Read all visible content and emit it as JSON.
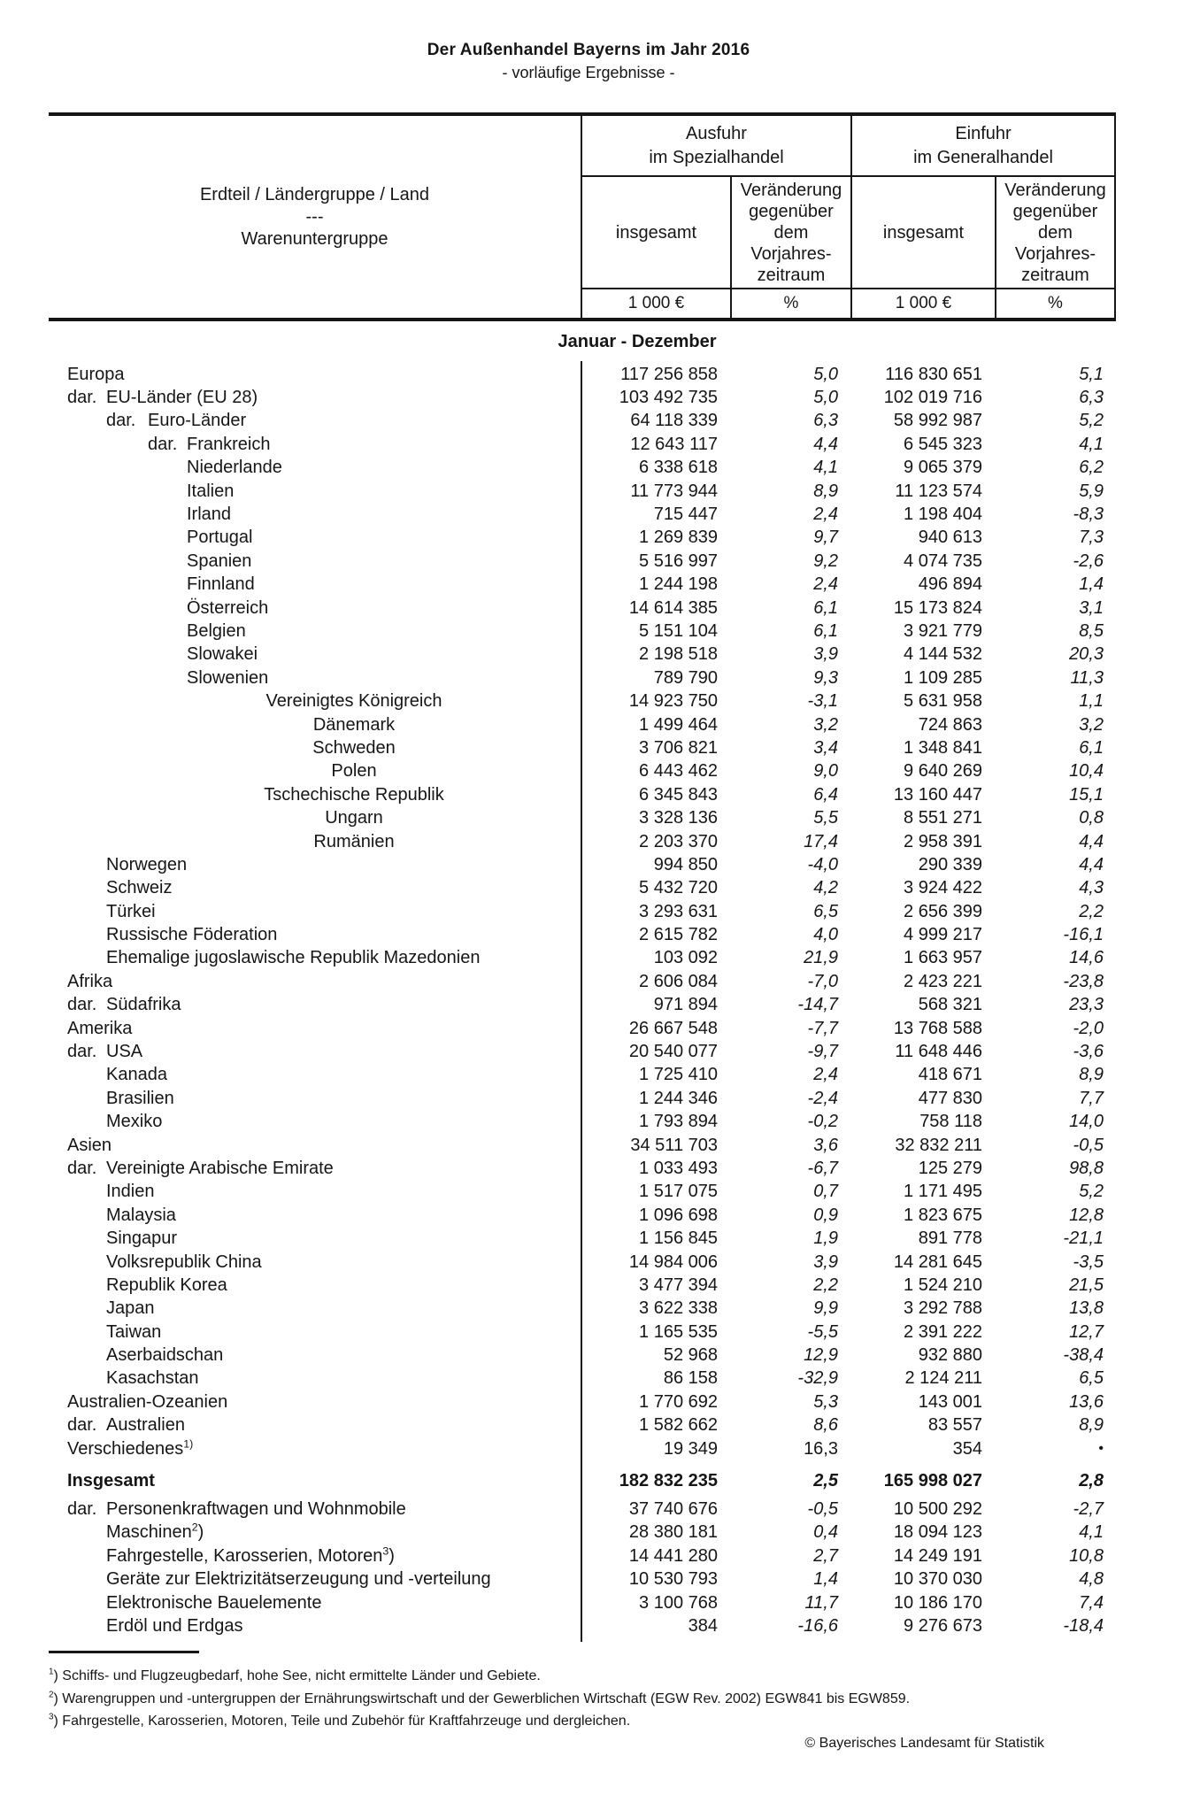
{
  "title": "Der Außenhandel Bayerns im Jahr 2016",
  "subtitle": "- vorläufige Ergebnisse -",
  "header": {
    "label_column": "Erdteil / Ländergruppe / Land\n---\nWarenuntergruppe",
    "groups": [
      "Ausfuhr\nim Spezialhandel",
      "Einfuhr\nim Generalhandel"
    ],
    "sub_total": "insgesamt",
    "sub_change": "Veränderung\ngegenüber\ndem\nVorjahres-\nzeitraum",
    "unit_value": "1 000 €",
    "unit_pct": "%"
  },
  "period": "Januar - Dezember",
  "no_value_symbol": "•",
  "colors": {
    "text": "#161616",
    "background": "#ffffff"
  },
  "rows": [
    {
      "l": "Europa",
      "ind": 0,
      "v1": "117 256 858",
      "p1": "5,0",
      "v2": "116 830 651",
      "p2": "5,1"
    },
    {
      "p": "dar.",
      "l": "EU-Länder (EU 28)",
      "ind": 0,
      "v1": "103 492 735",
      "p1": "5,0",
      "v2": "102 019 716",
      "p2": "6,3"
    },
    {
      "p": "dar.",
      "l": "Euro-Länder",
      "ind": 1,
      "v1": "64 118 339",
      "p1": "6,3",
      "v2": "58 992 987",
      "p2": "5,2"
    },
    {
      "p": "dar.",
      "l": "Frankreich",
      "ind": 2,
      "v1": "12 643 117",
      "p1": "4,4",
      "v2": "6 545 323",
      "p2": "4,1"
    },
    {
      "l": "Niederlande",
      "ind": 3,
      "v1": "6 338 618",
      "p1": "4,1",
      "v2": "9 065 379",
      "p2": "6,2"
    },
    {
      "l": "Italien",
      "ind": 3,
      "v1": "11 773 944",
      "p1": "8,9",
      "v2": "11 123 574",
      "p2": "5,9"
    },
    {
      "l": "Irland",
      "ind": 3,
      "v1": "715 447",
      "p1": "2,4",
      "v2": "1 198 404",
      "p2": "-8,3"
    },
    {
      "l": "Portugal",
      "ind": 3,
      "v1": "1 269 839",
      "p1": "9,7",
      "v2": "940 613",
      "p2": "7,3"
    },
    {
      "l": "Spanien",
      "ind": 3,
      "v1": "5 516 997",
      "p1": "9,2",
      "v2": "4 074 735",
      "p2": "-2,6"
    },
    {
      "l": "Finnland",
      "ind": 3,
      "v1": "1 244 198",
      "p1": "2,4",
      "v2": "496 894",
      "p2": "1,4"
    },
    {
      "l": "Österreich",
      "ind": 3,
      "v1": "14 614 385",
      "p1": "6,1",
      "v2": "15 173 824",
      "p2": "3,1"
    },
    {
      "l": "Belgien",
      "ind": 3,
      "v1": "5 151 104",
      "p1": "6,1",
      "v2": "3 921 779",
      "p2": "8,5"
    },
    {
      "l": "Slowakei",
      "ind": 3,
      "v1": "2 198 518",
      "p1": "3,9",
      "v2": "4 144 532",
      "p2": "20,3"
    },
    {
      "l": "Slowenien",
      "ind": 3,
      "v1": "789 790",
      "p1": "9,3",
      "v2": "1 109 285",
      "p2": "11,3"
    },
    {
      "l": "Vereinigtes Königreich",
      "ind": "c",
      "v1": "14 923 750",
      "p1": "-3,1",
      "v2": "5 631 958",
      "p2": "1,1"
    },
    {
      "l": "Dänemark",
      "ind": "c",
      "v1": "1 499 464",
      "p1": "3,2",
      "v2": "724 863",
      "p2": "3,2"
    },
    {
      "l": "Schweden",
      "ind": "c",
      "v1": "3 706 821",
      "p1": "3,4",
      "v2": "1 348 841",
      "p2": "6,1"
    },
    {
      "l": "Polen",
      "ind": "c",
      "v1": "6 443 462",
      "p1": "9,0",
      "v2": "9 640 269",
      "p2": "10,4"
    },
    {
      "l": "Tschechische Republik",
      "ind": "c",
      "v1": "6 345 843",
      "p1": "6,4",
      "v2": "13 160 447",
      "p2": "15,1"
    },
    {
      "l": "Ungarn",
      "ind": "c",
      "v1": "3 328 136",
      "p1": "5,5",
      "v2": "8 551 271",
      "p2": "0,8"
    },
    {
      "l": "Rumänien",
      "ind": "c",
      "v1": "2 203 370",
      "p1": "17,4",
      "v2": "2 958 391",
      "p2": "4,4"
    },
    {
      "l": "Norwegen",
      "ind": 1,
      "v1": "994 850",
      "p1": "-4,0",
      "v2": "290 339",
      "p2": "4,4"
    },
    {
      "l": "Schweiz",
      "ind": 1,
      "v1": "5 432 720",
      "p1": "4,2",
      "v2": "3 924 422",
      "p2": "4,3"
    },
    {
      "l": "Türkei",
      "ind": 1,
      "v1": "3 293 631",
      "p1": "6,5",
      "v2": "2 656 399",
      "p2": "2,2"
    },
    {
      "l": "Russische Föderation",
      "ind": 1,
      "v1": "2 615 782",
      "p1": "4,0",
      "v2": "4 999 217",
      "p2": "-16,1"
    },
    {
      "l": "Ehemalige jugoslawische Republik Mazedonien",
      "ind": 1,
      "v1": "103 092",
      "p1": "21,9",
      "v2": "1 663 957",
      "p2": "14,6"
    },
    {
      "l": "Afrika",
      "ind": 0,
      "v1": "2 606 084",
      "p1": "-7,0",
      "v2": "2 423 221",
      "p2": "-23,8"
    },
    {
      "p": "dar.",
      "l": "Südafrika",
      "ind": 0,
      "v1": "971 894",
      "p1": "-14,7",
      "v2": "568 321",
      "p2": "23,3"
    },
    {
      "l": "Amerika",
      "ind": 0,
      "v1": "26 667 548",
      "p1": "-7,7",
      "v2": "13 768 588",
      "p2": "-2,0"
    },
    {
      "p": "dar.",
      "l": "USA",
      "ind": 0,
      "v1": "20 540 077",
      "p1": "-9,7",
      "v2": "11 648 446",
      "p2": "-3,6"
    },
    {
      "l": "Kanada",
      "ind": 1,
      "v1": "1 725 410",
      "p1": "2,4",
      "v2": "418 671",
      "p2": "8,9"
    },
    {
      "l": "Brasilien",
      "ind": 1,
      "v1": "1 244 346",
      "p1": "-2,4",
      "v2": "477 830",
      "p2": "7,7"
    },
    {
      "l": "Mexiko",
      "ind": 1,
      "v1": "1 793 894",
      "p1": "-0,2",
      "v2": "758 118",
      "p2": "14,0"
    },
    {
      "l": "Asien",
      "ind": 0,
      "v1": "34 511 703",
      "p1": "3,6",
      "v2": "32 832 211",
      "p2": "-0,5"
    },
    {
      "p": "dar.",
      "l": "Vereinigte Arabische Emirate",
      "ind": 0,
      "v1": "1 033 493",
      "p1": "-6,7",
      "v2": "125 279",
      "p2": "98,8"
    },
    {
      "l": "Indien",
      "ind": 1,
      "v1": "1 517 075",
      "p1": "0,7",
      "v2": "1 171 495",
      "p2": "5,2"
    },
    {
      "l": "Malaysia",
      "ind": 1,
      "v1": "1 096 698",
      "p1": "0,9",
      "v2": "1 823 675",
      "p2": "12,8"
    },
    {
      "l": "Singapur",
      "ind": 1,
      "v1": "1 156 845",
      "p1": "1,9",
      "v2": "891 778",
      "p2": "-21,1"
    },
    {
      "l": "Volksrepublik China",
      "ind": 1,
      "v1": "14 984 006",
      "p1": "3,9",
      "v2": "14 281 645",
      "p2": "-3,5"
    },
    {
      "l": "Republik Korea",
      "ind": 1,
      "v1": "3 477 394",
      "p1": "2,2",
      "v2": "1 524 210",
      "p2": "21,5"
    },
    {
      "l": "Japan",
      "ind": 1,
      "v1": "3 622 338",
      "p1": "9,9",
      "v2": "3 292 788",
      "p2": "13,8"
    },
    {
      "l": "Taiwan",
      "ind": 1,
      "v1": "1 165 535",
      "p1": "-5,5",
      "v2": "2 391 222",
      "p2": "12,7"
    },
    {
      "l": "Aserbaidschan",
      "ind": 1,
      "v1": "52 968",
      "p1": "12,9",
      "v2": "932 880",
      "p2": "-38,4"
    },
    {
      "l": "Kasachstan",
      "ind": 1,
      "v1": "86 158",
      "p1": "-32,9",
      "v2": "2 124 211",
      "p2": "6,5"
    },
    {
      "l": "Australien-Ozeanien",
      "ind": 0,
      "v1": "1 770 692",
      "p1": "5,3",
      "v2": "143 001",
      "p2": "13,6"
    },
    {
      "p": "dar.",
      "l": "Australien",
      "ind": 0,
      "v1": "1 582 662",
      "p1": "8,6",
      "v2": "83 557",
      "p2": "8,9"
    },
    {
      "l": "Verschiedenes",
      "sup": "1)",
      "ind": 0,
      "v1": "19 349",
      "p1": "16,3",
      "v2": "354",
      "p2": "•",
      "dot": true
    },
    {
      "l": "Insgesamt",
      "ind": 0,
      "bold": true,
      "gap": "sum",
      "v1": "182 832 235",
      "p1": "2,5",
      "v2": "165 998 027",
      "p2": "2,8"
    },
    {
      "p": "dar.",
      "l": "Personenkraftwagen und Wohnmobile",
      "ind": 0,
      "gap": "goods",
      "v1": "37 740 676",
      "p1": "-0,5",
      "v2": "10 500 292",
      "p2": "-2,7"
    },
    {
      "l": "Maschinen",
      "sup": "2",
      "post": ")",
      "ind": 1,
      "v1": "28 380 181",
      "p1": "0,4",
      "v2": "18 094 123",
      "p2": "4,1"
    },
    {
      "l": "Fahrgestelle, Karosserien, Motoren",
      "sup": "3",
      "post": ")",
      "ind": 1,
      "v1": "14 441 280",
      "p1": "2,7",
      "v2": "14 249 191",
      "p2": "10,8"
    },
    {
      "l": "Geräte zur Elektrizitätserzeugung und -verteilung",
      "ind": 1,
      "v1": "10 530 793",
      "p1": "1,4",
      "v2": "10 370 030",
      "p2": "4,8"
    },
    {
      "l": "Elektronische Bauelemente",
      "ind": 1,
      "v1": "3 100 768",
      "p1": "11,7",
      "v2": "10 186 170",
      "p2": "7,4"
    },
    {
      "l": "Erdöl und Erdgas",
      "ind": 1,
      "v1": "384",
      "p1": "-16,6",
      "v2": "9 276 673",
      "p2": "-18,4"
    }
  ],
  "footnotes": [
    {
      "marker": "1",
      "text": "Schiffs- und Flugzeugbedarf, hohe See, nicht ermittelte Länder und Gebiete."
    },
    {
      "marker": "2",
      "text": "Warengruppen und -untergruppen der Ernährungswirtschaft und der Gewerblichen Wirtschaft (EGW Rev. 2002) EGW841 bis EGW859."
    },
    {
      "marker": "3",
      "text": "Fahrgestelle, Karosserien, Motoren, Teile und Zubehör für Kraftfahrzeuge und dergleichen."
    }
  ],
  "copyright": "© Bayerisches Landesamt für Statistik"
}
